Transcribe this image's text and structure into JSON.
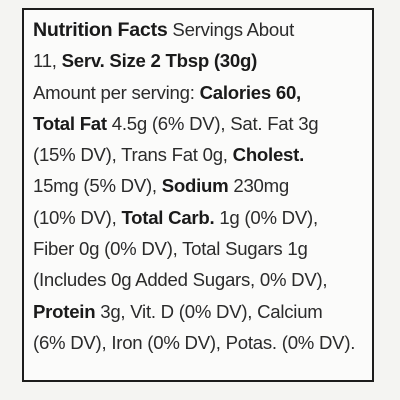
{
  "lines": [
    {
      "segments": [
        {
          "text": "Nutrition Facts",
          "bold": true,
          "big": true
        },
        {
          "text": " Servings About",
          "bold": false
        }
      ]
    },
    {
      "segments": [
        {
          "text": "11, ",
          "bold": false
        },
        {
          "text": "Serv. Size 2 Tbsp (30g)",
          "bold": true
        }
      ]
    },
    {
      "segments": [
        {
          "text": "Amount per serving: ",
          "bold": false
        },
        {
          "text": "Calories 60,",
          "bold": true
        }
      ]
    },
    {
      "segments": [
        {
          "text": "Total Fat",
          "bold": true
        },
        {
          "text": " 4.5g (6% DV), Sat. Fat 3g",
          "bold": false
        }
      ]
    },
    {
      "segments": [
        {
          "text": "(15% DV), Trans Fat 0g, ",
          "bold": false
        },
        {
          "text": "Cholest.",
          "bold": true
        }
      ]
    },
    {
      "segments": [
        {
          "text": "15mg (5% DV), ",
          "bold": false
        },
        {
          "text": "Sodium",
          "bold": true
        },
        {
          "text": " 230mg",
          "bold": false
        }
      ]
    },
    {
      "segments": [
        {
          "text": "(10% DV), ",
          "bold": false
        },
        {
          "text": "Total Carb.",
          "bold": true
        },
        {
          "text": " 1g (0% DV),",
          "bold": false
        }
      ]
    },
    {
      "segments": [
        {
          "text": "Fiber 0g (0% DV), Total Sugars 1g",
          "bold": false
        }
      ]
    },
    {
      "segments": [
        {
          "text": "(Includes 0g Added Sugars, 0% DV),",
          "bold": false
        }
      ]
    },
    {
      "segments": [
        {
          "text": "Protein",
          "bold": true
        },
        {
          "text": " 3g, Vit. D (0% DV), Calcium",
          "bold": false
        }
      ]
    },
    {
      "segments": [
        {
          "text": "(6% DV), Iron (0% DV), Potas. (0% DV).",
          "bold": false
        }
      ]
    }
  ]
}
